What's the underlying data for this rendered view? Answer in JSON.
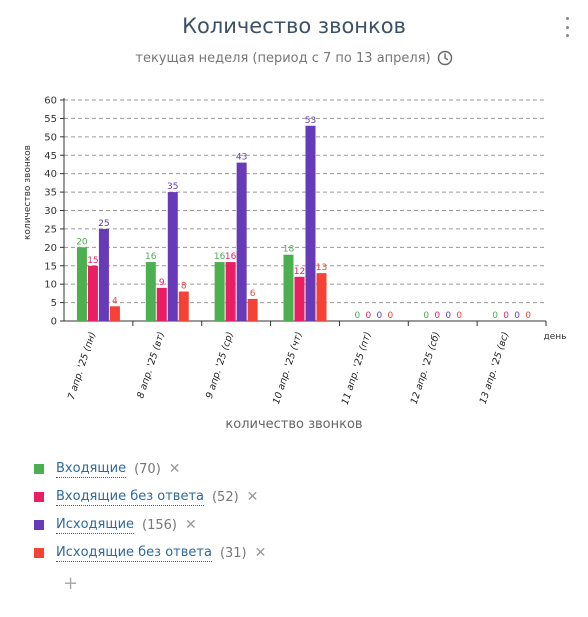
{
  "header": {
    "title": "Количество звонков",
    "subtitle": "текущая неделя (период с 7 по 13 апреля)"
  },
  "chart_data": {
    "type": "bar",
    "title": "Количество звонков",
    "subtitle": "текущая неделя (период с 7 по 13 апреля)",
    "xlabel": "день",
    "x_title": "количество звонков",
    "ylabel": "количество звонков",
    "ylim": [
      0,
      60
    ],
    "yticks": [
      0,
      5,
      10,
      15,
      20,
      25,
      30,
      35,
      40,
      45,
      50,
      55,
      60
    ],
    "grid": true,
    "legend_position": "bottom-left",
    "categories": [
      "7 апр. '25 (пн)",
      "8 апр. '25 (вт)",
      "9 апр. '25 (ср)",
      "10 апр. '25 (чт)",
      "11 апр. '25 (пт)",
      "12 апр. '25 (сб)",
      "13 апр. '25 (вс)"
    ],
    "series": [
      {
        "name": "Входящие",
        "color": "#4caf50",
        "values": [
          20,
          16,
          16,
          18,
          0,
          0,
          0
        ]
      },
      {
        "name": "Входящие без ответа",
        "color": "#e91e63",
        "values": [
          15,
          9,
          16,
          12,
          0,
          0,
          0
        ]
      },
      {
        "name": "Исходящие",
        "color": "#673ab7",
        "values": [
          25,
          35,
          43,
          53,
          0,
          0,
          0
        ]
      },
      {
        "name": "Исходящие без ответа",
        "color": "#f44336",
        "values": [
          4,
          8,
          6,
          13,
          0,
          0,
          0
        ]
      }
    ]
  },
  "legend": {
    "items": [
      {
        "label": "Входящие",
        "count": "(70)",
        "color": "#4caf50"
      },
      {
        "label": "Входящие без ответа",
        "count": "(52)",
        "color": "#e91e63"
      },
      {
        "label": "Исходящие",
        "count": "(156)",
        "color": "#673ab7"
      },
      {
        "label": "Исходящие без ответа",
        "count": "(31)",
        "color": "#f44336"
      }
    ],
    "remove_symbol": "✕",
    "add_symbol": "+"
  },
  "icons": {
    "menu": "vertical-dots-icon",
    "clock": "clock-icon"
  }
}
